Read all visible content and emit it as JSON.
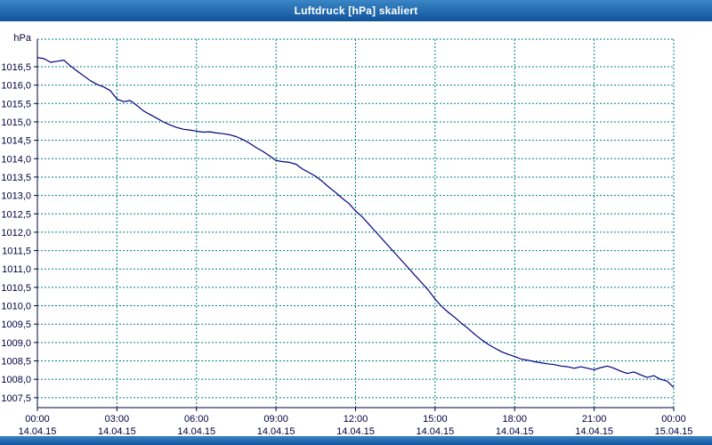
{
  "window": {
    "title": "Luftdruck [hPa] skaliert"
  },
  "chart_data": {
    "type": "line",
    "title": "Luftdruck [hPa] skaliert",
    "ylabel": "hPa",
    "xlabel": "",
    "xlim": [
      0,
      24
    ],
    "ylim": [
      1007.23,
      1017.25
    ],
    "grid": true,
    "legend": "none",
    "colors": {
      "line": "#000080",
      "grid": "#008080",
      "axis": "#000040",
      "text": "#000040",
      "titlebar": "#1a63a8",
      "background": "#ffffff"
    },
    "y_ticks": [
      {
        "value": 1016.5,
        "label": "1016,5"
      },
      {
        "value": 1016.0,
        "label": "1016,0"
      },
      {
        "value": 1015.5,
        "label": "1015,5"
      },
      {
        "value": 1015.0,
        "label": "1015,0"
      },
      {
        "value": 1014.5,
        "label": "1014,5"
      },
      {
        "value": 1014.0,
        "label": "1014,0"
      },
      {
        "value": 1013.5,
        "label": "1013,5"
      },
      {
        "value": 1013.0,
        "label": "1013,0"
      },
      {
        "value": 1012.5,
        "label": "1012,5"
      },
      {
        "value": 1012.0,
        "label": "1012,0"
      },
      {
        "value": 1011.5,
        "label": "1011,5"
      },
      {
        "value": 1011.0,
        "label": "1011,0"
      },
      {
        "value": 1010.5,
        "label": "1010,5"
      },
      {
        "value": 1010.0,
        "label": "1010,0"
      },
      {
        "value": 1009.5,
        "label": "1009,5"
      },
      {
        "value": 1009.0,
        "label": "1009,0"
      },
      {
        "value": 1008.5,
        "label": "1008,5"
      },
      {
        "value": 1008.0,
        "label": "1008,0"
      },
      {
        "value": 1007.5,
        "label": "1007,5"
      }
    ],
    "x_ticks": [
      {
        "hour": 0,
        "time": "00:00",
        "date": "14.04.15"
      },
      {
        "hour": 3,
        "time": "03:00",
        "date": "14.04.15"
      },
      {
        "hour": 6,
        "time": "06:00",
        "date": "14.04.15"
      },
      {
        "hour": 9,
        "time": "09:00",
        "date": "14.04.15"
      },
      {
        "hour": 12,
        "time": "12:00",
        "date": "14.04.15"
      },
      {
        "hour": 15,
        "time": "15:00",
        "date": "14.04.15"
      },
      {
        "hour": 18,
        "time": "18:00",
        "date": "14.04.15"
      },
      {
        "hour": 21,
        "time": "21:00",
        "date": "14.04.15"
      },
      {
        "hour": 24,
        "time": "00:00",
        "date": "15.04.15"
      }
    ],
    "series": [
      {
        "name": "Luftdruck",
        "x": [
          0,
          0.25,
          0.5,
          0.75,
          1,
          1.25,
          1.5,
          1.75,
          2,
          2.25,
          2.5,
          2.75,
          3,
          3.25,
          3.5,
          3.75,
          4,
          4.25,
          4.5,
          4.75,
          5,
          5.25,
          5.5,
          5.75,
          6,
          6.25,
          6.5,
          6.75,
          7,
          7.25,
          7.5,
          7.75,
          8,
          8.25,
          8.5,
          8.75,
          9,
          9.25,
          9.5,
          9.75,
          10,
          10.25,
          10.5,
          10.75,
          11,
          11.25,
          11.5,
          11.75,
          12,
          12.25,
          12.5,
          12.75,
          13,
          13.25,
          13.5,
          13.75,
          14,
          14.25,
          14.5,
          14.75,
          15,
          15.25,
          15.5,
          15.75,
          16,
          16.25,
          16.5,
          16.75,
          17,
          17.25,
          17.5,
          17.75,
          18,
          18.25,
          18.5,
          18.75,
          19,
          19.25,
          19.5,
          19.75,
          20,
          20.25,
          20.5,
          20.75,
          21,
          21.25,
          21.5,
          21.75,
          22,
          22.25,
          22.5,
          22.75,
          23,
          23.25,
          23.5,
          23.75,
          24
        ],
        "values": [
          1016.75,
          1016.72,
          1016.62,
          1016.65,
          1016.68,
          1016.52,
          1016.38,
          1016.25,
          1016.12,
          1016.02,
          1015.95,
          1015.85,
          1015.62,
          1015.55,
          1015.58,
          1015.45,
          1015.3,
          1015.2,
          1015.1,
          1015.0,
          1014.92,
          1014.85,
          1014.8,
          1014.78,
          1014.75,
          1014.72,
          1014.73,
          1014.7,
          1014.68,
          1014.65,
          1014.6,
          1014.52,
          1014.42,
          1014.3,
          1014.2,
          1014.08,
          1013.95,
          1013.92,
          1013.9,
          1013.85,
          1013.72,
          1013.62,
          1013.52,
          1013.38,
          1013.22,
          1013.08,
          1012.92,
          1012.78,
          1012.58,
          1012.42,
          1012.22,
          1012.02,
          1011.82,
          1011.62,
          1011.42,
          1011.22,
          1011.02,
          1010.82,
          1010.62,
          1010.42,
          1010.18,
          1009.98,
          1009.82,
          1009.68,
          1009.52,
          1009.38,
          1009.22,
          1009.08,
          1008.95,
          1008.85,
          1008.75,
          1008.68,
          1008.62,
          1008.55,
          1008.52,
          1008.48,
          1008.45,
          1008.42,
          1008.4,
          1008.36,
          1008.34,
          1008.3,
          1008.34,
          1008.3,
          1008.26,
          1008.32,
          1008.36,
          1008.3,
          1008.22,
          1008.16,
          1008.2,
          1008.12,
          1008.05,
          1008.1,
          1008.0,
          1007.95,
          1007.78
        ]
      }
    ]
  }
}
